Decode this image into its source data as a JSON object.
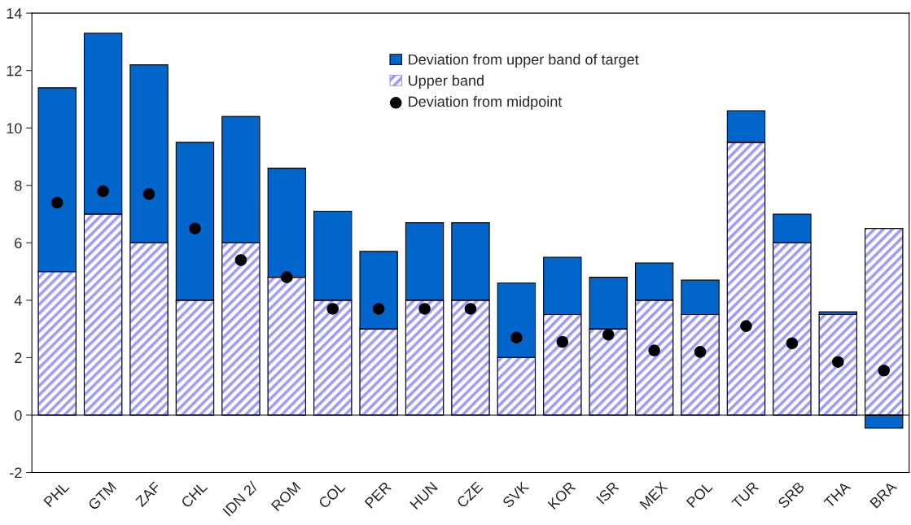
{
  "chart_data": {
    "type": "bar",
    "stacked": true,
    "categories": [
      "PHL",
      "GTM",
      "ZAF",
      "CHL",
      "IDN 2/",
      "ROM",
      "COL",
      "PER",
      "HUN",
      "CZE",
      "SVK",
      "KOR",
      "ISR",
      "MEX",
      "POL",
      "TUR",
      "SRB",
      "THA",
      "BRA"
    ],
    "series": [
      {
        "name": "Upper band",
        "color": "#9999ff",
        "values": [
          5,
          7,
          6,
          4,
          6,
          4.8,
          4,
          3,
          4,
          4,
          2,
          3.5,
          3,
          4,
          3.5,
          9.5,
          6,
          3.5,
          6.5
        ]
      },
      {
        "name": "Deviation from upper band of target",
        "color": "#0066cc",
        "values": [
          6.4,
          6.3,
          6.2,
          5.5,
          4.4,
          3.8,
          3.1,
          2.7,
          2.7,
          2.7,
          2.6,
          2.0,
          1.8,
          1.3,
          1.2,
          1.1,
          1.0,
          0.1,
          -0.45
        ]
      },
      {
        "name": "Deviation from midpoint",
        "type": "scatter",
        "color": "#000000",
        "marker": "circle",
        "x": [
          "PHL",
          "GTM",
          "ZAF",
          "CHL",
          "IDN 2/",
          "ROM",
          "COL",
          "PER",
          "HUN",
          "CZE",
          "SVK",
          "KOR",
          "ISR",
          "MEX",
          "POL",
          "TUR",
          "SRB",
          "THA",
          "BRA"
        ],
        "values": [
          7.4,
          7.8,
          7.7,
          6.5,
          5.4,
          4.8,
          3.7,
          3.7,
          3.7,
          3.7,
          2.7,
          2.55,
          2.8,
          2.25,
          2.2,
          3.1,
          2.5,
          1.85,
          1.55
        ]
      }
    ],
    "ylim": [
      -2,
      14
    ],
    "yticks": [
      -2,
      0,
      2,
      4,
      6,
      8,
      10,
      12,
      14
    ],
    "grid": false,
    "legend": "top",
    "ref_lines": [
      {
        "axis": "y",
        "value": 0,
        "color": "#000000"
      }
    ]
  }
}
